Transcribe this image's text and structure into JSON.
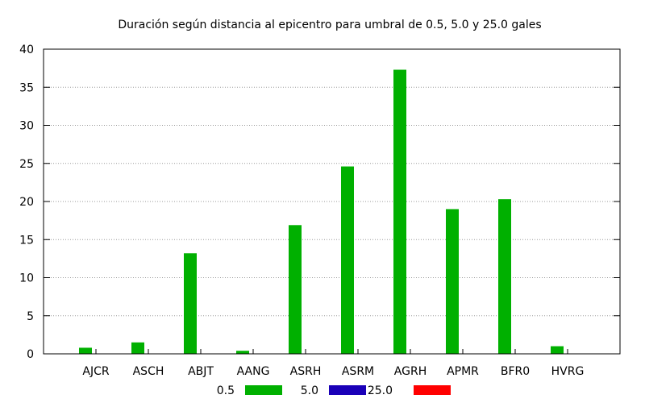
{
  "chart_data": {
    "type": "bar",
    "title": "Duración según distancia al epicentro para umbral de 0.5, 5.0 y 25.0 gales",
    "xlabel": "",
    "ylabel": "",
    "categories": [
      "AJCR",
      "ASCH",
      "ABJT",
      "AANG",
      "ASRH",
      "ASRM",
      "AGRH",
      "APMR",
      "BFR0",
      "HVRG"
    ],
    "series": [
      {
        "name": "0.5",
        "color": "#00b000",
        "values": [
          0.8,
          1.5,
          13.2,
          0.4,
          16.9,
          24.6,
          37.3,
          19.0,
          20.3,
          1.0
        ]
      },
      {
        "name": "5.0",
        "color": "#1a00b8",
        "values": [
          0,
          0,
          0,
          0,
          0,
          0,
          0,
          0,
          0,
          0
        ]
      },
      {
        "name": "25.0",
        "color": "#ff0000",
        "values": [
          0,
          0,
          0,
          0,
          0,
          0,
          0,
          0,
          0,
          0
        ]
      }
    ],
    "ylim": [
      0,
      40
    ],
    "yticks": [
      "0",
      "5",
      "10",
      "15",
      "20",
      "25",
      "30",
      "35",
      "40"
    ],
    "grid": true,
    "legend_position": "bottom"
  }
}
